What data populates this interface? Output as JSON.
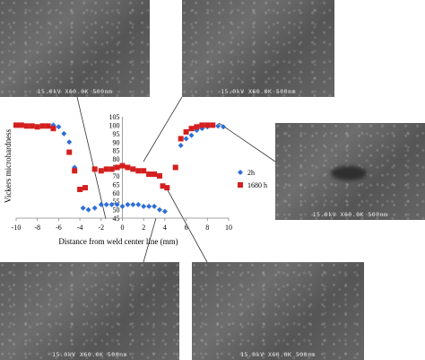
{
  "micrographs": [
    {
      "id": "top-left",
      "caption": "15.0kV X60.0K 500nm"
    },
    {
      "id": "top-middle",
      "caption": "15.0kV X60.0K 500nm"
    },
    {
      "id": "right",
      "caption": "15.0kV X60.0K 500nm"
    },
    {
      "id": "bottom-left",
      "caption": "15.0kV X60.0K 500nm"
    },
    {
      "id": "bottom-right",
      "caption": "15.0kV X60.0K 500nm"
    }
  ],
  "chart_data": {
    "type": "scatter",
    "xlabel": "Distance from weld center line (mm)",
    "ylabel": "Vickers microhardness",
    "xlim": [
      -10,
      10
    ],
    "ylim": [
      45,
      105
    ],
    "x_ticks": [
      -10,
      -8,
      -6,
      -4,
      -2,
      0,
      2,
      4,
      6,
      8,
      10
    ],
    "y_ticks": [
      45,
      50,
      55,
      60,
      65,
      70,
      75,
      80,
      85,
      90,
      95,
      100,
      105
    ],
    "grid": false,
    "legend_position": "right",
    "series": [
      {
        "name": "2h",
        "color": "#2e6fd8",
        "marker": "diamond",
        "points": [
          [
            -6.5,
            100
          ],
          [
            -6,
            99
          ],
          [
            -5.5,
            95
          ],
          [
            -5,
            90
          ],
          [
            -4.5,
            75
          ],
          [
            -3.7,
            51
          ],
          [
            -3.2,
            50
          ],
          [
            -2.6,
            51
          ],
          [
            -2,
            53
          ],
          [
            -1.5,
            53
          ],
          [
            -1,
            53
          ],
          [
            -0.5,
            53
          ],
          [
            0,
            52
          ],
          [
            0.5,
            53
          ],
          [
            1,
            53
          ],
          [
            1.5,
            53
          ],
          [
            2,
            52
          ],
          [
            2.5,
            52
          ],
          [
            3,
            52
          ],
          [
            3.5,
            50
          ],
          [
            4,
            49
          ],
          [
            5.5,
            88
          ],
          [
            6,
            92
          ],
          [
            6.5,
            94
          ],
          [
            7,
            97
          ],
          [
            7.5,
            98
          ],
          [
            8,
            99
          ],
          [
            8.5,
            100
          ],
          [
            9,
            99.5
          ],
          [
            9.5,
            99
          ]
        ]
      },
      {
        "name": "1680 h",
        "color": "#d41f1f",
        "marker": "square",
        "points": [
          [
            -10,
            100
          ],
          [
            -9.5,
            100
          ],
          [
            -9,
            99.5
          ],
          [
            -8.5,
            99.5
          ],
          [
            -8,
            99
          ],
          [
            -7.5,
            99.5
          ],
          [
            -7,
            99.5
          ],
          [
            -6.5,
            98
          ],
          [
            -5,
            84
          ],
          [
            -4.5,
            73
          ],
          [
            -4,
            62
          ],
          [
            -3.5,
            63
          ],
          [
            -2.6,
            74
          ],
          [
            -2,
            73
          ],
          [
            -1.5,
            74
          ],
          [
            -1,
            74
          ],
          [
            -0.5,
            75
          ],
          [
            0,
            76
          ],
          [
            0.5,
            75
          ],
          [
            1,
            74
          ],
          [
            1.5,
            73
          ],
          [
            2,
            73
          ],
          [
            2.5,
            71
          ],
          [
            3,
            71
          ],
          [
            3.5,
            70
          ],
          [
            3.8,
            64
          ],
          [
            4.2,
            63
          ],
          [
            5,
            75
          ],
          [
            5.5,
            92
          ],
          [
            6,
            96
          ],
          [
            6.5,
            98
          ],
          [
            7,
            99
          ],
          [
            7.5,
            100
          ],
          [
            8,
            100
          ],
          [
            8.5,
            100
          ]
        ]
      }
    ]
  }
}
